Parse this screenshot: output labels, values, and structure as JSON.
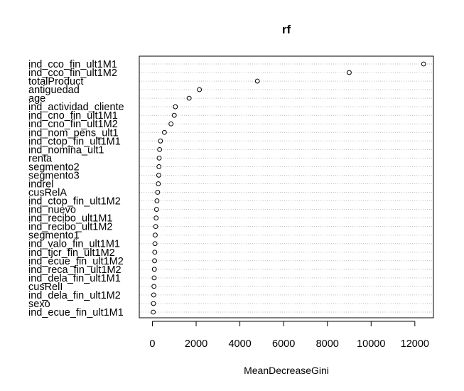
{
  "chart_data": {
    "type": "scatter",
    "title": "rf",
    "xlabel": "MeanDecreaseGini",
    "ylabel": "",
    "xlim": [
      -600,
      12850
    ],
    "xticks": [
      0,
      2000,
      4000,
      6000,
      8000,
      10000,
      12000
    ],
    "xtick_labels": [
      "0",
      "2000",
      "4000",
      "6000",
      "8000",
      "10000",
      "12000"
    ],
    "grid": "dotted horizontal lines per variable",
    "legend": "none",
    "series": [
      {
        "categories": [
          "ind_cco_fin_ult1M1",
          "ind_cco_fin_ult1M2",
          "totalProduct",
          "antiguedad",
          "age",
          "ind_actividad_cliente",
          "ind_cno_fin_ult1M1",
          "ind_cno_fin_ult1M2",
          "ind_nom_pens_ult1",
          "ind_ctop_fin_ult1M1",
          "ind_nomina_ult1",
          "renta",
          "segmento2",
          "segmento3",
          "indrel",
          "cusRelA",
          "ind_ctop_fin_ult1M2",
          "ind_nuevo",
          "ind_recibo_ult1M1",
          "ind_recibo_ult1M2",
          "segmento1",
          "ind_valo_fin_ult1M1",
          "ind_tjcr_fin_ult1M2",
          "ind_ecue_fin_ult1M2",
          "ind_reca_fin_ult1M2",
          "ind_dela_fin_ult1M1",
          "cusRelI",
          "ind_dela_fin_ult1M2",
          "sexo",
          "ind_ecue_fin_ult1M1"
        ],
        "values": [
          12400,
          9000,
          4800,
          2150,
          1680,
          1050,
          1000,
          850,
          550,
          370,
          330,
          310,
          300,
          290,
          270,
          240,
          210,
          190,
          170,
          150,
          130,
          120,
          110,
          100,
          90,
          80,
          70,
          60,
          50,
          40
        ]
      }
    ]
  }
}
